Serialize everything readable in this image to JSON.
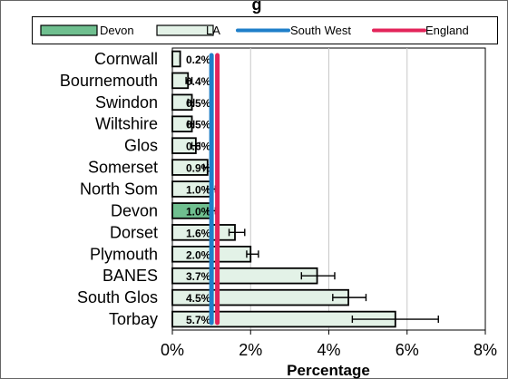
{
  "chart_data": {
    "type": "bar",
    "orientation": "horizontal",
    "title_visible_fragment": "g",
    "xlabel": "Percentage",
    "ylabel": "",
    "xlim": [
      0,
      8
    ],
    "x_ticks": [
      "0%",
      "2%",
      "4%",
      "6%",
      "8%"
    ],
    "grid": "vertical",
    "legend_position": "top",
    "legend": [
      {
        "name": "Devon",
        "kind": "bar",
        "color": "#6fbf8f"
      },
      {
        "name": "LA",
        "kind": "bar",
        "color": "#e3f2e7"
      },
      {
        "name": "South West",
        "kind": "line",
        "color": "#1f7fc9"
      },
      {
        "name": "England",
        "kind": "line",
        "color": "#e3245a"
      }
    ],
    "categories": [
      "Cornwall",
      "Bournemouth",
      "Swindon",
      "Wiltshire",
      "Glos",
      "Somerset",
      "North Som",
      "Devon",
      "Dorset",
      "Plymouth",
      "BANES",
      "South Glos",
      "Torbay"
    ],
    "values": [
      0.2,
      0.4,
      0.5,
      0.5,
      0.6,
      0.9,
      1.0,
      1.0,
      1.6,
      2.0,
      3.7,
      4.5,
      5.7
    ],
    "value_labels": [
      "0.2%",
      "0.4%",
      "0.5%",
      "0.5%",
      "0.6%",
      "0.9%",
      "1.0%",
      "1.0%",
      "1.6%",
      "2.0%",
      "3.7%",
      "4.5%",
      "5.7%"
    ],
    "error_bars": [
      [
        0.2,
        0.2
      ],
      [
        0.35,
        0.5
      ],
      [
        0.4,
        0.55
      ],
      [
        0.4,
        0.55
      ],
      [
        0.5,
        0.7
      ],
      [
        0.8,
        1.0
      ],
      [
        0.9,
        1.1
      ],
      [
        0.9,
        1.1
      ],
      [
        1.45,
        1.85
      ],
      [
        1.9,
        2.2
      ],
      [
        3.3,
        4.15
      ],
      [
        4.1,
        4.95
      ],
      [
        4.6,
        6.8
      ]
    ],
    "highlight_category": "Devon",
    "reference_lines": [
      {
        "name": "South West",
        "value": 1.0,
        "color": "#1f7fc9"
      },
      {
        "name": "England",
        "value": 1.15,
        "color": "#e3245a"
      }
    ]
  }
}
